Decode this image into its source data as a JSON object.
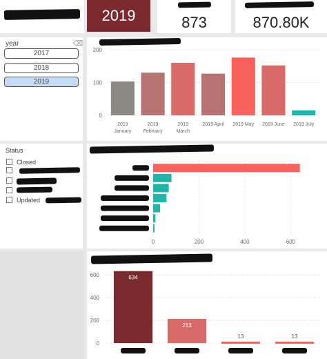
{
  "kpis": {
    "year_value": "2019",
    "count_value": "873",
    "amount_value": "870.80K"
  },
  "year_slicer": {
    "title": "year",
    "eraser_icon": "eraser-icon",
    "options": [
      "2017",
      "2018",
      "2019"
    ],
    "selected": "2019"
  },
  "status_slicer": {
    "title": "Status",
    "items": [
      {
        "label": "Closed"
      },
      {
        "label": ""
      },
      {
        "label": ""
      },
      {
        "label": ""
      },
      {
        "label": "Updated"
      }
    ]
  },
  "chart_data": [
    {
      "type": "bar",
      "title": "",
      "categories": [
        "2019 January",
        "2019 February",
        "2019 March",
        "2019 April",
        "2019 May",
        "2019 June",
        "2019 July"
      ],
      "category_lines": [
        [
          "2019",
          "January"
        ],
        [
          "2019",
          "February"
        ],
        [
          "2019",
          "March"
        ],
        [
          "2019 April"
        ],
        [
          "2019 May"
        ],
        [
          "2019 June"
        ],
        [
          "2019 July"
        ]
      ],
      "values": [
        103,
        130,
        160,
        127,
        176,
        152,
        15
      ],
      "colors": [
        "#8c8883",
        "#b77371",
        "#d86a68",
        "#b77371",
        "#f7625f",
        "#d86a68",
        "#1fb5a8"
      ],
      "ylim": [
        0,
        200
      ],
      "yticks": [
        "0",
        "100",
        "200"
      ],
      "grid": true
    },
    {
      "type": "bar",
      "orientation": "horizontal",
      "title": "",
      "categories": [
        "",
        "",
        "",
        "",
        "",
        "",
        ""
      ],
      "values": [
        640,
        80,
        68,
        58,
        30,
        10,
        6
      ],
      "colors": [
        "#f7625f",
        "#1fb5a8",
        "#1fb5a8",
        "#1fb5a8",
        "#1fb5a8",
        "#1fb5a8",
        "#1fb5a8"
      ],
      "xlim": [
        0,
        650
      ],
      "xticks": [
        "0",
        "200",
        "400",
        "600"
      ],
      "grid": true
    },
    {
      "type": "bar",
      "title": "",
      "categories": [
        "",
        "",
        "",
        ""
      ],
      "values": [
        634,
        213,
        13,
        13
      ],
      "data_labels": [
        "634",
        "213",
        "13",
        "13"
      ],
      "colors": [
        "#7a2a2e",
        "#d86a68",
        "#f7625f",
        "#f7625f"
      ],
      "ylim": [
        0,
        650
      ],
      "yticks": [
        "0",
        "200",
        "400",
        "600"
      ],
      "grid": true
    }
  ]
}
